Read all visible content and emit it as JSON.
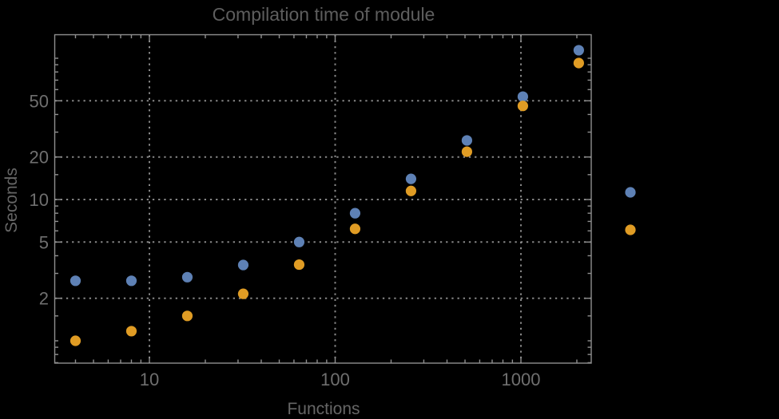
{
  "title": "Compilation time of module",
  "chart_data": {
    "type": "scatter",
    "title": "Compilation time of module",
    "xlabel": "Functions",
    "ylabel": "Seconds",
    "x_axis": {
      "scale": "log",
      "range": [
        3.1,
        2380
      ],
      "major_ticks": [
        10,
        100,
        1000
      ],
      "major_tick_labels": [
        "10",
        "100",
        "1000"
      ],
      "minor_ticks": [
        4,
        5,
        6,
        7,
        8,
        9,
        20,
        30,
        40,
        50,
        60,
        70,
        80,
        90,
        200,
        300,
        400,
        500,
        600,
        700,
        800,
        900,
        2000
      ]
    },
    "y_axis": {
      "scale": "log",
      "range": [
        0.69,
        148
      ],
      "major_ticks": [
        2,
        5,
        10,
        20,
        50
      ],
      "major_tick_labels": [
        "2",
        "5",
        "10",
        "20",
        "50"
      ],
      "minor_ticks": [
        0.7,
        0.8,
        0.9,
        1,
        1.5,
        3,
        4,
        6,
        7,
        8,
        9,
        15,
        30,
        40,
        60,
        70,
        80,
        90,
        100
      ]
    },
    "grid": {
      "style": "dotted",
      "x_values": [
        10,
        100,
        1000
      ],
      "y_values": [
        2,
        5,
        10,
        20,
        50
      ]
    },
    "x": [
      4,
      8,
      16,
      32,
      64,
      128,
      256,
      512,
      1024,
      2048
    ],
    "series": [
      {
        "name": "series-blue",
        "color": "#5E81B5",
        "values": [
          2.66,
          2.66,
          2.82,
          3.44,
          5.0,
          8.0,
          14.0,
          26.2,
          53.5,
          114
        ]
      },
      {
        "name": "series-orange",
        "color": "#E09C24",
        "values": [
          1.0,
          1.17,
          1.5,
          2.15,
          3.46,
          6.2,
          11.5,
          21.8,
          46.0,
          92.5
        ]
      }
    ],
    "legend": {
      "position": "right-outside",
      "entries": [
        {
          "label": "",
          "color": "#5E81B5"
        },
        {
          "label": "",
          "color": "#E09C24"
        }
      ]
    }
  },
  "colors": {
    "background": "#000000",
    "frame": "#8f8f8f",
    "gridline": "#878787",
    "title_text": "#5e5e5e",
    "tick_text": "#6f6f6f",
    "axis_label_text": "#666666"
  }
}
